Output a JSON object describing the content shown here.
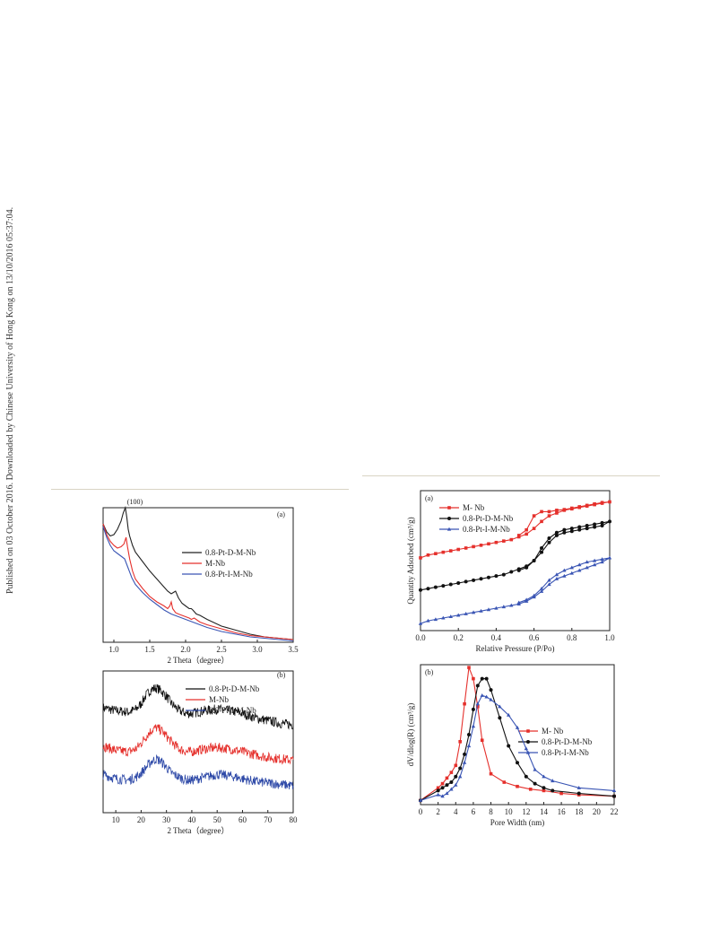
{
  "side_note": "Published on 03 October 2016. Downloaded by Chinese University of Hong Kong on 13/10/2016 05:37:04.",
  "chart_data": [
    {
      "id": "xrd-low",
      "type": "line",
      "panel_label": "(a)",
      "annotation": "(100)",
      "xlabel": "2 Theta（degree）",
      "ylabel": "",
      "xlim": [
        0.85,
        3.5
      ],
      "ylim": [
        0,
        1
      ],
      "xticks": [
        "1.0",
        "1.5",
        "2.0",
        "2.5",
        "3.0",
        "3.5"
      ],
      "legend_position": "right",
      "series": [
        {
          "name": "0.8-Pt-D-M-Nb",
          "color": "#222222",
          "x": [
            0.85,
            0.9,
            0.95,
            1.0,
            1.05,
            1.1,
            1.13,
            1.16,
            1.18,
            1.2,
            1.22,
            1.26,
            1.3,
            1.4,
            1.5,
            1.6,
            1.7,
            1.75,
            1.8,
            1.83,
            1.86,
            1.9,
            1.95,
            2.0,
            2.05,
            2.08,
            2.1,
            2.15,
            2.2,
            2.3,
            2.5,
            2.7,
            2.9,
            3.1,
            3.3,
            3.5
          ],
          "y": [
            0.88,
            0.82,
            0.79,
            0.8,
            0.84,
            0.9,
            0.96,
            1.0,
            0.93,
            0.84,
            0.79,
            0.72,
            0.67,
            0.6,
            0.53,
            0.47,
            0.41,
            0.38,
            0.36,
            0.37,
            0.38,
            0.33,
            0.29,
            0.27,
            0.25,
            0.25,
            0.24,
            0.21,
            0.2,
            0.17,
            0.12,
            0.09,
            0.06,
            0.04,
            0.03,
            0.02
          ]
        },
        {
          "name": "M-Nb",
          "color": "#e5302c",
          "x": [
            0.85,
            0.9,
            0.95,
            1.0,
            1.05,
            1.1,
            1.14,
            1.17,
            1.19,
            1.22,
            1.26,
            1.3,
            1.4,
            1.5,
            1.6,
            1.7,
            1.75,
            1.78,
            1.8,
            1.82,
            1.86,
            1.9,
            2.0,
            2.05,
            2.08,
            2.12,
            2.2,
            2.3,
            2.5,
            2.7,
            2.9,
            3.1,
            3.3,
            3.5
          ],
          "y": [
            0.88,
            0.8,
            0.75,
            0.72,
            0.7,
            0.71,
            0.73,
            0.78,
            0.71,
            0.62,
            0.53,
            0.47,
            0.4,
            0.34,
            0.3,
            0.27,
            0.25,
            0.27,
            0.3,
            0.25,
            0.22,
            0.21,
            0.19,
            0.18,
            0.17,
            0.18,
            0.15,
            0.13,
            0.1,
            0.07,
            0.05,
            0.04,
            0.03,
            0.02
          ]
        },
        {
          "name": "0.8-Pt-I-M-Nb",
          "color": "#3a55b4",
          "x": [
            0.85,
            0.9,
            0.95,
            1.0,
            1.05,
            1.1,
            1.15,
            1.2,
            1.25,
            1.3,
            1.4,
            1.5,
            1.6,
            1.7,
            1.8,
            1.9,
            2.0,
            2.1,
            2.2,
            2.3,
            2.5,
            2.7,
            2.9,
            3.1,
            3.3,
            3.5
          ],
          "y": [
            0.86,
            0.78,
            0.72,
            0.68,
            0.66,
            0.64,
            0.62,
            0.55,
            0.48,
            0.43,
            0.37,
            0.32,
            0.28,
            0.24,
            0.21,
            0.19,
            0.17,
            0.15,
            0.13,
            0.11,
            0.08,
            0.06,
            0.04,
            0.03,
            0.02,
            0.01
          ]
        }
      ]
    },
    {
      "id": "xrd-wide",
      "type": "line",
      "panel_label": "(b)",
      "xlabel": "2 Theta（degree）",
      "ylabel": "",
      "xlim": [
        5,
        80
      ],
      "ylim": [
        0,
        1
      ],
      "xticks": [
        "10",
        "20",
        "30",
        "40",
        "50",
        "60",
        "70",
        "80"
      ],
      "legend_position": "top-right",
      "noisy": true,
      "series": [
        {
          "name": "0.8-Pt-D-M-Nb",
          "color": "#111111",
          "x": [
            5,
            10,
            15,
            18,
            20,
            22,
            24,
            26,
            28,
            30,
            32,
            35,
            38,
            40,
            45,
            50,
            55,
            60,
            65,
            70,
            75,
            80
          ],
          "y": [
            0.74,
            0.72,
            0.71,
            0.73,
            0.77,
            0.83,
            0.87,
            0.88,
            0.86,
            0.82,
            0.77,
            0.72,
            0.7,
            0.7,
            0.72,
            0.73,
            0.72,
            0.7,
            0.67,
            0.65,
            0.63,
            0.62
          ]
        },
        {
          "name": "M-Nb",
          "color": "#e5302c",
          "x": [
            5,
            10,
            15,
            18,
            20,
            22,
            24,
            26,
            28,
            30,
            32,
            35,
            38,
            40,
            45,
            50,
            55,
            60,
            65,
            70,
            75,
            80
          ],
          "y": [
            0.47,
            0.44,
            0.43,
            0.45,
            0.49,
            0.54,
            0.58,
            0.6,
            0.58,
            0.54,
            0.5,
            0.45,
            0.43,
            0.43,
            0.45,
            0.46,
            0.45,
            0.43,
            0.41,
            0.39,
            0.38,
            0.37
          ]
        },
        {
          "name": "0.8-Pt-I-M-Nb",
          "color": "#2f4aa8",
          "x": [
            5,
            10,
            15,
            18,
            20,
            22,
            24,
            26,
            28,
            30,
            32,
            35,
            38,
            40,
            45,
            50,
            55,
            60,
            65,
            70,
            75,
            80
          ],
          "y": [
            0.27,
            0.24,
            0.23,
            0.25,
            0.28,
            0.32,
            0.36,
            0.38,
            0.36,
            0.32,
            0.28,
            0.25,
            0.23,
            0.23,
            0.25,
            0.27,
            0.26,
            0.24,
            0.22,
            0.21,
            0.2,
            0.19
          ]
        }
      ]
    },
    {
      "id": "isotherm",
      "type": "line",
      "panel_label": "(a)",
      "xlabel": "Relative Pressure (P/Po)",
      "ylabel": "Quantity Adsorbed (cm³/g)",
      "xlim": [
        0,
        1
      ],
      "ylim": [
        0,
        1
      ],
      "xticks": [
        "0.0",
        "0.2",
        "0.4",
        "0.6",
        "0.8",
        "1.0"
      ],
      "legend_position": "top-left",
      "series": [
        {
          "name": "M- Nb",
          "color": "#e5302c",
          "marker": "square",
          "x": [
            0.0,
            0.04,
            0.08,
            0.12,
            0.16,
            0.2,
            0.24,
            0.28,
            0.32,
            0.36,
            0.4,
            0.44,
            0.48,
            0.52,
            0.56,
            0.6,
            0.64,
            0.68,
            0.72,
            0.76,
            0.8,
            0.84,
            0.88,
            0.92,
            0.96,
            1.0,
            0.96,
            0.92,
            0.88,
            0.84,
            0.8,
            0.76,
            0.72,
            0.68,
            0.64,
            0.6,
            0.56,
            0.52
          ],
          "y": [
            0.52,
            0.54,
            0.55,
            0.56,
            0.57,
            0.58,
            0.59,
            0.6,
            0.61,
            0.62,
            0.63,
            0.64,
            0.65,
            0.67,
            0.69,
            0.73,
            0.78,
            0.82,
            0.84,
            0.86,
            0.87,
            0.88,
            0.89,
            0.9,
            0.91,
            0.92,
            0.915,
            0.905,
            0.895,
            0.885,
            0.875,
            0.865,
            0.86,
            0.85,
            0.85,
            0.82,
            0.72,
            0.68
          ]
        },
        {
          "name": "0.8-Pt-D-M-Nb",
          "color": "#111111",
          "marker": "circle",
          "x": [
            0.0,
            0.04,
            0.08,
            0.12,
            0.16,
            0.2,
            0.24,
            0.28,
            0.32,
            0.36,
            0.4,
            0.44,
            0.48,
            0.52,
            0.56,
            0.6,
            0.64,
            0.68,
            0.72,
            0.76,
            0.8,
            0.84,
            0.88,
            0.92,
            0.96,
            1.0,
            0.96,
            0.92,
            0.88,
            0.84,
            0.8,
            0.76,
            0.72,
            0.68,
            0.64,
            0.6,
            0.56,
            0.52
          ],
          "y": [
            0.29,
            0.3,
            0.31,
            0.32,
            0.33,
            0.34,
            0.35,
            0.36,
            0.37,
            0.38,
            0.39,
            0.4,
            0.42,
            0.44,
            0.46,
            0.5,
            0.56,
            0.63,
            0.68,
            0.7,
            0.71,
            0.72,
            0.73,
            0.74,
            0.75,
            0.78,
            0.77,
            0.76,
            0.75,
            0.74,
            0.73,
            0.72,
            0.7,
            0.66,
            0.59,
            0.5,
            0.45,
            0.43
          ]
        },
        {
          "name": "0.8-Pt-I-M-Nb",
          "color": "#3a55b4",
          "marker": "triangle",
          "x": [
            0.0,
            0.04,
            0.08,
            0.12,
            0.16,
            0.2,
            0.24,
            0.28,
            0.32,
            0.36,
            0.4,
            0.44,
            0.48,
            0.52,
            0.56,
            0.6,
            0.64,
            0.68,
            0.72,
            0.76,
            0.8,
            0.84,
            0.88,
            0.92,
            0.96,
            1.0,
            0.96,
            0.92,
            0.88,
            0.84,
            0.8,
            0.76,
            0.72,
            0.68,
            0.64,
            0.6,
            0.56,
            0.52
          ],
          "y": [
            0.05,
            0.07,
            0.08,
            0.09,
            0.1,
            0.11,
            0.12,
            0.13,
            0.14,
            0.15,
            0.16,
            0.17,
            0.18,
            0.19,
            0.21,
            0.24,
            0.28,
            0.33,
            0.37,
            0.39,
            0.41,
            0.43,
            0.45,
            0.47,
            0.49,
            0.52,
            0.51,
            0.5,
            0.49,
            0.47,
            0.45,
            0.43,
            0.4,
            0.36,
            0.3,
            0.25,
            0.22,
            0.2
          ]
        }
      ]
    },
    {
      "id": "pore-dist",
      "type": "line",
      "panel_label": "(b)",
      "xlabel": "Pore Width (nm)",
      "ylabel": "dV/dlog(R) (cm³/g)",
      "xlim": [
        0,
        22
      ],
      "ylim": [
        0,
        1
      ],
      "xticks": [
        "0",
        "2",
        "4",
        "6",
        "8",
        "10",
        "12",
        "14",
        "16",
        "18",
        "20",
        "22"
      ],
      "legend_position": "right",
      "series": [
        {
          "name": "M- Nb",
          "color": "#e5302c",
          "marker": "square",
          "x": [
            0,
            2,
            2.5,
            3,
            3.5,
            4,
            4.5,
            5,
            5.5,
            6,
            6.5,
            7,
            8,
            9.5,
            11,
            12.5,
            14,
            16,
            18,
            22
          ],
          "y": [
            0.03,
            0.12,
            0.15,
            0.19,
            0.23,
            0.28,
            0.45,
            0.72,
            0.98,
            0.9,
            0.7,
            0.46,
            0.22,
            0.16,
            0.13,
            0.11,
            0.1,
            0.08,
            0.07,
            0.06
          ]
        },
        {
          "name": "0.8-Pt-D-M-Nb",
          "color": "#111111",
          "marker": "circle",
          "x": [
            0,
            2,
            2.5,
            3,
            3.5,
            4,
            4.5,
            5,
            5.5,
            6,
            6.5,
            7,
            7.5,
            8,
            9,
            10,
            11,
            12,
            13,
            14,
            15,
            18,
            22
          ],
          "y": [
            0.03,
            0.1,
            0.12,
            0.14,
            0.16,
            0.2,
            0.26,
            0.36,
            0.5,
            0.68,
            0.85,
            0.9,
            0.9,
            0.82,
            0.62,
            0.42,
            0.3,
            0.2,
            0.15,
            0.12,
            0.1,
            0.08,
            0.06
          ]
        },
        {
          "name": "0.8-Pt-I-M-Nb",
          "color": "#3a55b4",
          "marker": "triangle",
          "x": [
            0,
            2,
            2.5,
            3,
            3.5,
            4,
            4.5,
            5,
            5.5,
            6,
            6.5,
            7,
            7.5,
            8,
            9,
            10,
            11,
            12,
            13,
            14,
            15,
            18,
            22
          ],
          "y": [
            0.03,
            0.07,
            0.06,
            0.08,
            0.11,
            0.14,
            0.2,
            0.3,
            0.42,
            0.56,
            0.72,
            0.78,
            0.77,
            0.75,
            0.7,
            0.64,
            0.55,
            0.4,
            0.25,
            0.2,
            0.17,
            0.12,
            0.1
          ]
        }
      ]
    }
  ]
}
